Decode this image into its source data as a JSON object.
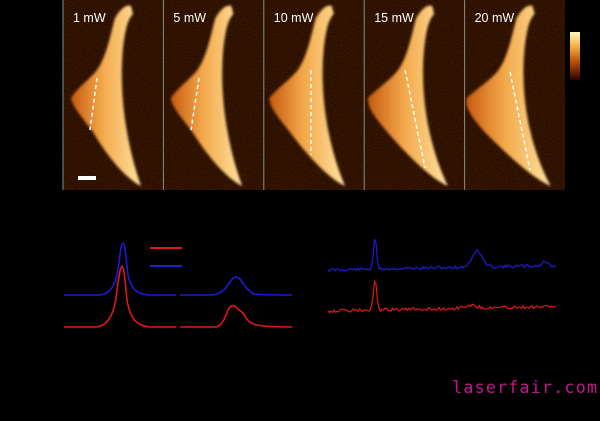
{
  "panels": [
    {
      "label": "1 mW",
      "crossSection": [
        [
          97,
          78
        ],
        [
          90,
          130
        ]
      ]
    },
    {
      "label": "5 mW",
      "crossSection": [
        [
          199,
          78
        ],
        [
          191,
          130
        ]
      ]
    },
    {
      "label": "10 mW",
      "crossSection": [
        [
          311,
          70
        ],
        [
          311,
          155
        ]
      ]
    },
    {
      "label": "15 mW",
      "crossSection": [
        [
          405,
          70
        ],
        [
          425,
          168
        ]
      ]
    },
    {
      "label": "20 mW",
      "crossSection": [
        [
          510,
          72
        ],
        [
          530,
          170
        ]
      ]
    }
  ],
  "colors": {
    "background": "#000000",
    "panel_divider": "#8a8a8a",
    "blue_trace": "#1c1cd6",
    "red_trace": "#e01818",
    "scale_bar": "#ffffff",
    "watermark": "#c0188f",
    "colorbar_top": "#fff3b0",
    "colorbar_bottom": "#3a0500"
  },
  "watermark": "laserfair.com"
}
